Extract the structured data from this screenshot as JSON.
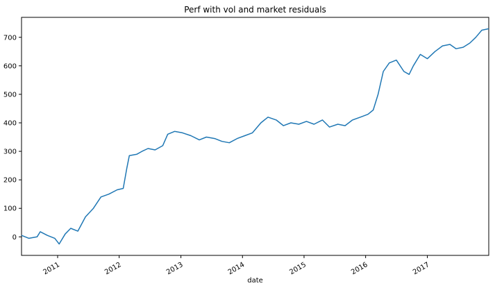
{
  "chart_data": {
    "type": "line",
    "title": "Perf with vol and market residuals",
    "xlabel": "date",
    "ylabel": "",
    "xlim": [
      "2010-06-01",
      "2017-12-31"
    ],
    "ylim": [
      -65,
      770
    ],
    "grid": false,
    "legend": "none",
    "colors": {
      "line": "#1f77b4",
      "axis": "#000000",
      "background": "#ffffff"
    },
    "x_ticks": [
      {
        "date": "2011-01-01",
        "label": "2011"
      },
      {
        "date": "2012-01-01",
        "label": "2012"
      },
      {
        "date": "2013-01-01",
        "label": "2013"
      },
      {
        "date": "2014-01-01",
        "label": "2014"
      },
      {
        "date": "2015-01-01",
        "label": "2015"
      },
      {
        "date": "2016-01-01",
        "label": "2016"
      },
      {
        "date": "2017-01-01",
        "label": "2017"
      }
    ],
    "y_ticks": [
      {
        "value": 0,
        "label": "0"
      },
      {
        "value": 100,
        "label": "100"
      },
      {
        "value": 200,
        "label": "200"
      },
      {
        "value": 300,
        "label": "300"
      },
      {
        "value": 400,
        "label": "400"
      },
      {
        "value": 500,
        "label": "500"
      },
      {
        "value": 600,
        "label": "600"
      },
      {
        "value": 700,
        "label": "700"
      }
    ],
    "series": [
      {
        "x": [
          "2010-06-01",
          "2010-07-15",
          "2010-09-01",
          "2010-09-20",
          "2010-11-01",
          "2010-12-15",
          "2011-01-10",
          "2011-02-15",
          "2011-03-20",
          "2011-05-01",
          "2011-06-15",
          "2011-08-01",
          "2011-09-15",
          "2011-11-01",
          "2011-12-20",
          "2012-01-25",
          "2012-02-15",
          "2012-03-01",
          "2012-04-15",
          "2012-05-15",
          "2012-06-20",
          "2012-08-01",
          "2012-09-15",
          "2012-10-15",
          "2012-11-25",
          "2013-01-10",
          "2013-03-01",
          "2013-04-20",
          "2013-06-01",
          "2013-07-20",
          "2013-09-01",
          "2013-10-15",
          "2013-12-01",
          "2014-01-15",
          "2014-03-01",
          "2014-04-20",
          "2014-06-01",
          "2014-07-20",
          "2014-09-01",
          "2014-10-15",
          "2014-12-01",
          "2015-01-15",
          "2015-03-01",
          "2015-04-20",
          "2015-06-01",
          "2015-07-20",
          "2015-09-01",
          "2015-10-15",
          "2015-12-01",
          "2016-01-15",
          "2016-02-15",
          "2016-03-15",
          "2016-04-15",
          "2016-05-20",
          "2016-07-01",
          "2016-08-15",
          "2016-09-15",
          "2016-10-10",
          "2016-11-20",
          "2017-01-01",
          "2017-02-15",
          "2017-04-01",
          "2017-05-15",
          "2017-06-20",
          "2017-08-01",
          "2017-09-10",
          "2017-10-15",
          "2017-11-20",
          "2017-12-31"
        ],
        "values": [
          5,
          -5,
          0,
          18,
          5,
          -5,
          -25,
          10,
          30,
          20,
          70,
          100,
          140,
          150,
          165,
          170,
          240,
          285,
          290,
          300,
          310,
          305,
          320,
          360,
          370,
          365,
          355,
          340,
          350,
          345,
          335,
          330,
          345,
          355,
          365,
          400,
          420,
          410,
          390,
          400,
          395,
          405,
          395,
          410,
          385,
          395,
          390,
          410,
          420,
          430,
          445,
          500,
          580,
          610,
          620,
          580,
          570,
          600,
          640,
          625,
          650,
          670,
          675,
          660,
          665,
          680,
          700,
          725,
          730
        ]
      }
    ]
  }
}
